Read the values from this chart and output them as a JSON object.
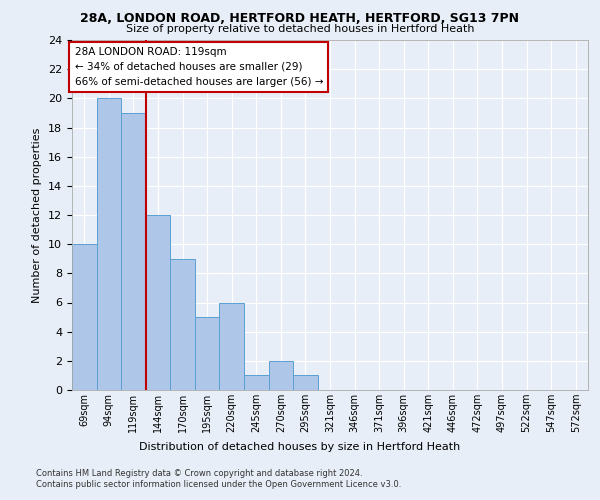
{
  "title1": "28A, LONDON ROAD, HERTFORD HEATH, HERTFORD, SG13 7PN",
  "title2": "Size of property relative to detached houses in Hertford Heath",
  "xlabel": "Distribution of detached houses by size in Hertford Heath",
  "ylabel": "Number of detached properties",
  "categories": [
    "69sqm",
    "94sqm",
    "119sqm",
    "144sqm",
    "170sqm",
    "195sqm",
    "220sqm",
    "245sqm",
    "270sqm",
    "295sqm",
    "321sqm",
    "346sqm",
    "371sqm",
    "396sqm",
    "421sqm",
    "446sqm",
    "472sqm",
    "497sqm",
    "522sqm",
    "547sqm",
    "572sqm"
  ],
  "values": [
    10,
    20,
    19,
    12,
    9,
    5,
    6,
    1,
    2,
    1,
    0,
    0,
    0,
    0,
    0,
    0,
    0,
    0,
    0,
    0,
    0
  ],
  "bar_color": "#aec6e8",
  "bar_edge_color": "#5a9fd4",
  "highlight_bar_index": 2,
  "highlight_color": "#c00000",
  "ylim": [
    0,
    24
  ],
  "yticks": [
    0,
    2,
    4,
    6,
    8,
    10,
    12,
    14,
    16,
    18,
    20,
    22,
    24
  ],
  "annotation_title": "28A LONDON ROAD: 119sqm",
  "annotation_line1": "← 34% of detached houses are smaller (29)",
  "annotation_line2": "66% of semi-detached houses are larger (56) →",
  "annotation_box_color": "#c00000",
  "footer1": "Contains HM Land Registry data © Crown copyright and database right 2024.",
  "footer2": "Contains public sector information licensed under the Open Government Licence v3.0.",
  "bg_color": "#e8eef7",
  "plot_bg_color": "#e8eef7",
  "grid_color": "#ffffff"
}
